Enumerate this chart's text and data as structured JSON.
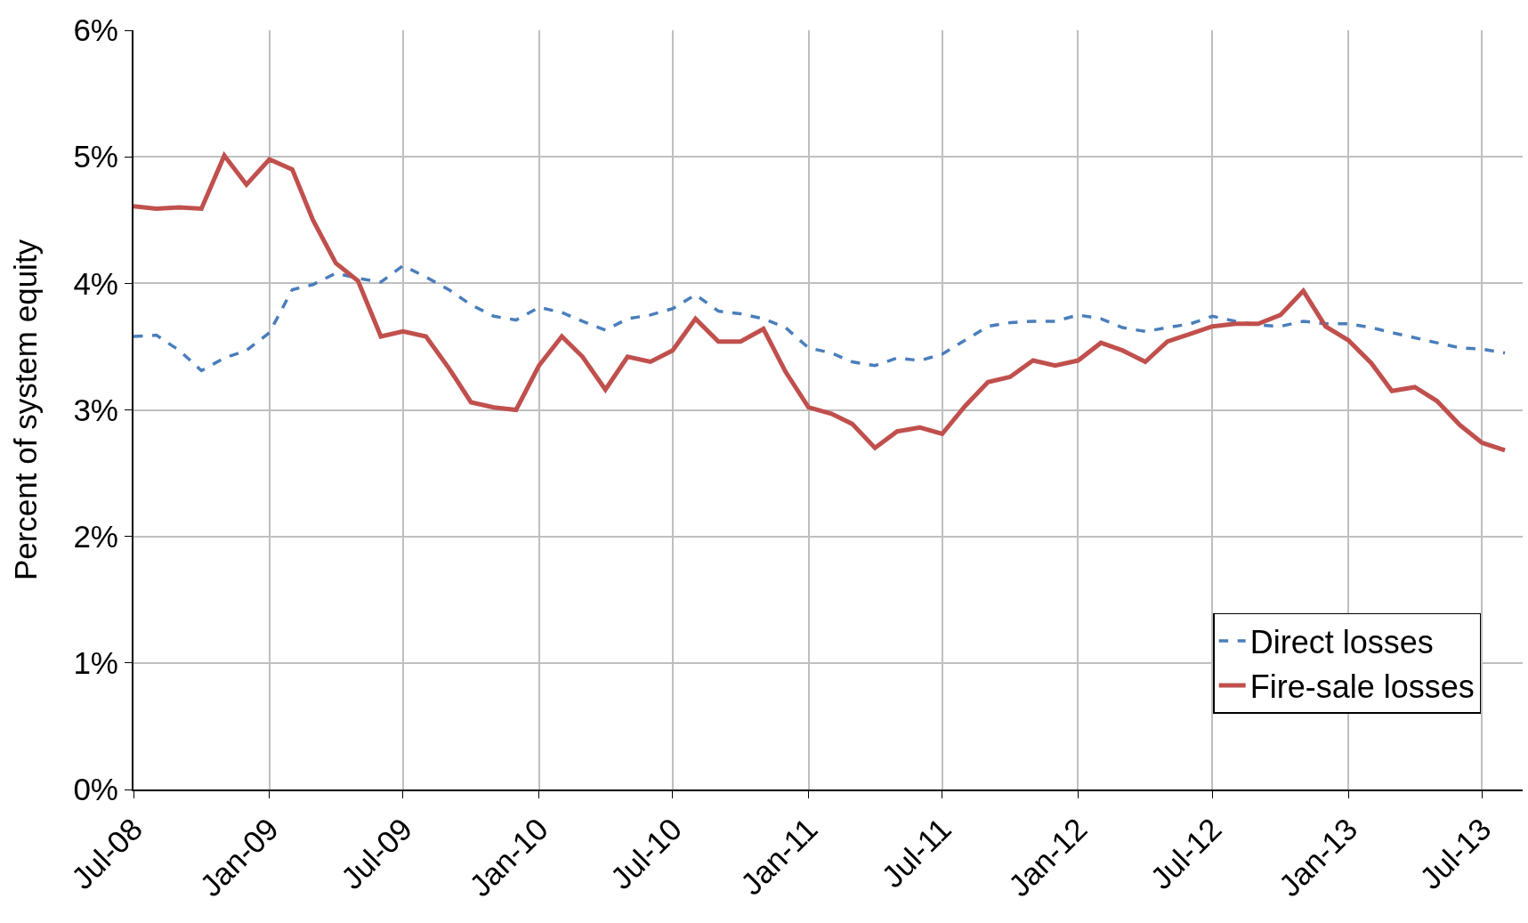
{
  "chart_data": {
    "type": "line",
    "ylabel": "Percent of system equity",
    "x": [
      "2008-07",
      "2008-08",
      "2008-09",
      "2008-10",
      "2008-11",
      "2008-12",
      "2009-01",
      "2009-02",
      "2009-03",
      "2009-04",
      "2009-05",
      "2009-06",
      "2009-07",
      "2009-08",
      "2009-09",
      "2009-10",
      "2009-11",
      "2009-12",
      "2010-01",
      "2010-02",
      "2010-03",
      "2010-04",
      "2010-05",
      "2010-06",
      "2010-07",
      "2010-08",
      "2010-09",
      "2010-10",
      "2010-11",
      "2010-12",
      "2011-01",
      "2011-02",
      "2011-03",
      "2011-04",
      "2011-05",
      "2011-06",
      "2011-07",
      "2011-08",
      "2011-09",
      "2011-10",
      "2011-11",
      "2011-12",
      "2012-01",
      "2012-02",
      "2012-03",
      "2012-04",
      "2012-05",
      "2012-06",
      "2012-07",
      "2012-08",
      "2012-09",
      "2012-10",
      "2012-11",
      "2012-12",
      "2013-01",
      "2013-02",
      "2013-03",
      "2013-04",
      "2013-05",
      "2013-06",
      "2013-07",
      "2013-08"
    ],
    "series": [
      {
        "name": "Direct losses",
        "color": "#4a7ebb",
        "line_style": "dashed",
        "values": [
          3.58,
          3.59,
          3.47,
          3.31,
          3.41,
          3.47,
          3.61,
          3.95,
          3.99,
          4.08,
          4.04,
          4.01,
          4.14,
          4.05,
          3.95,
          3.83,
          3.74,
          3.71,
          3.81,
          3.77,
          3.7,
          3.63,
          3.72,
          3.75,
          3.8,
          3.91,
          3.78,
          3.76,
          3.72,
          3.65,
          3.49,
          3.45,
          3.38,
          3.35,
          3.41,
          3.39,
          3.44,
          3.55,
          3.66,
          3.69,
          3.7,
          3.7,
          3.75,
          3.72,
          3.65,
          3.62,
          3.65,
          3.68,
          3.74,
          3.7,
          3.67,
          3.66,
          3.7,
          3.68,
          3.68,
          3.65,
          3.61,
          3.57,
          3.53,
          3.49,
          3.48,
          3.45
        ]
      },
      {
        "name": "Fire-sale losses",
        "color": "#c0504d",
        "line_style": "solid",
        "values": [
          4.61,
          4.59,
          4.6,
          4.59,
          5.01,
          4.78,
          4.98,
          4.9,
          4.5,
          4.16,
          4.02,
          3.58,
          3.62,
          3.58,
          3.33,
          3.06,
          3.02,
          3.0,
          3.35,
          3.58,
          3.42,
          3.16,
          3.42,
          3.38,
          3.47,
          3.72,
          3.54,
          3.54,
          3.64,
          3.3,
          3.02,
          2.97,
          2.89,
          2.7,
          2.83,
          2.86,
          2.81,
          3.03,
          3.22,
          3.26,
          3.39,
          3.35,
          3.39,
          3.53,
          3.47,
          3.38,
          3.54,
          3.6,
          3.66,
          3.68,
          3.68,
          3.75,
          3.94,
          3.66,
          3.55,
          3.37,
          3.15,
          3.18,
          3.07,
          2.88,
          2.74,
          2.68
        ]
      }
    ],
    "xlim": [
      "2008-07-01",
      "2013-08-25"
    ],
    "xticks": [
      {
        "value": "2008-07",
        "label": "Jul-08"
      },
      {
        "value": "2009-01",
        "label": "Jan-09"
      },
      {
        "value": "2009-07",
        "label": "Jul-09"
      },
      {
        "value": "2010-01",
        "label": "Jan-10"
      },
      {
        "value": "2010-07",
        "label": "Jul-10"
      },
      {
        "value": "2011-01",
        "label": "Jan-11"
      },
      {
        "value": "2011-07",
        "label": "Jul-11"
      },
      {
        "value": "2012-01",
        "label": "Jan-12"
      },
      {
        "value": "2012-07",
        "label": "Jul-12"
      },
      {
        "value": "2013-01",
        "label": "Jan-13"
      },
      {
        "value": "2013-07",
        "label": "Jul-13"
      }
    ],
    "ylim": [
      0,
      6
    ],
    "yticks": [
      {
        "value": 0,
        "label": "0%"
      },
      {
        "value": 1,
        "label": "1%"
      },
      {
        "value": 2,
        "label": "2%"
      },
      {
        "value": 3,
        "label": "3%"
      },
      {
        "value": 4,
        "label": "4%"
      },
      {
        "value": 5,
        "label": "5%"
      },
      {
        "value": 6,
        "label": "6%"
      }
    ],
    "grid": true,
    "legend": "bottom right"
  }
}
